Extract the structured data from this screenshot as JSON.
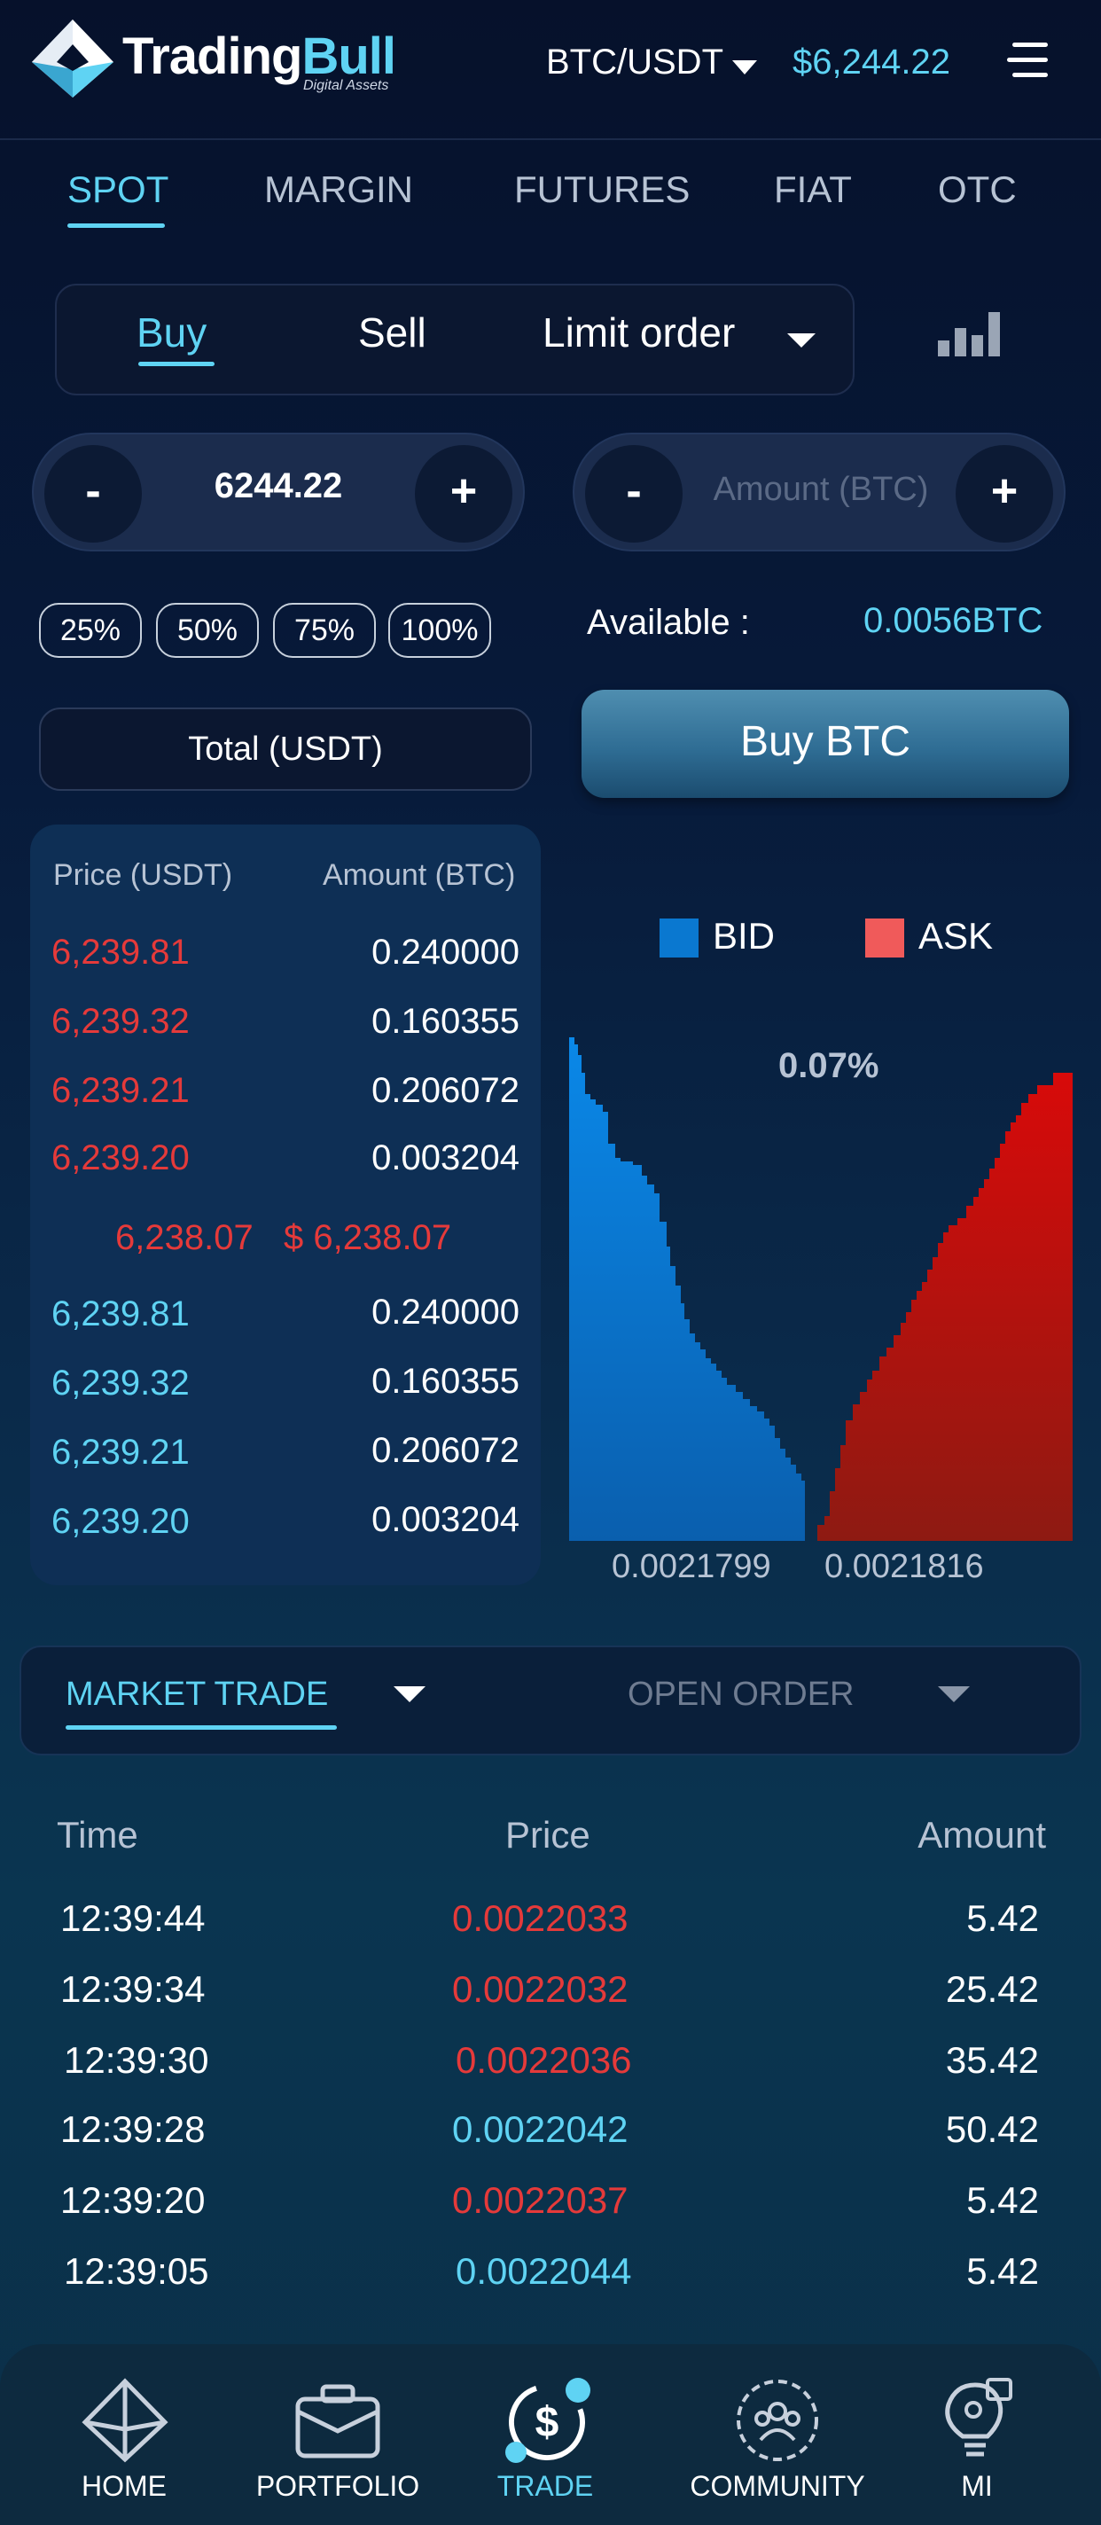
{
  "header": {
    "brand_part1": "Trading",
    "brand_part2": "Bull",
    "brand_sub": "Digital Assets",
    "pair": "BTC/USDT",
    "price": "$6,244.22"
  },
  "market_tabs": [
    "SPOT",
    "MARGIN",
    "FUTURES",
    "FIAT",
    "OTC"
  ],
  "order_types": {
    "buy": "Buy",
    "sell": "Sell",
    "limit": "Limit order"
  },
  "price_stepper": {
    "minus": "-",
    "value": "6244.22",
    "plus": "+"
  },
  "amount_stepper": {
    "minus": "-",
    "placeholder": "Amount (BTC)",
    "plus": "+"
  },
  "percent_chips": [
    "25%",
    "50%",
    "75%",
    "100%"
  ],
  "available": {
    "label": "Available  :",
    "value": "0.0056BTC"
  },
  "total_label": "Total (USDT)",
  "buy_button": "Buy BTC",
  "order_book": {
    "price_header": "Price (USDT)",
    "amount_header": "Amount (BTC)",
    "asks": [
      {
        "price": "6,239.81",
        "amount": "0.240000"
      },
      {
        "price": "6,239.32",
        "amount": "0.160355"
      },
      {
        "price": "6,239.21",
        "amount": "0.206072"
      },
      {
        "price": "6,239.20",
        "amount": "0.003204"
      }
    ],
    "mid_price": "6,238.07",
    "mid_usd": "$ 6,238.07",
    "bids": [
      {
        "price": "6,239.81",
        "amount": "0.240000"
      },
      {
        "price": "6,239.32",
        "amount": "0.160355"
      },
      {
        "price": "6,239.21",
        "amount": "0.206072"
      },
      {
        "price": "6,239.20",
        "amount": "0.003204"
      }
    ]
  },
  "depth_chart": {
    "bid_label": "BID",
    "ask_label": "ASK",
    "bid_color": "#0a78d0",
    "ask_color": "#f05a5a",
    "spread": "0.07%",
    "bid_price_label": "0.0021799",
    "ask_price_label": "0.0021816"
  },
  "trade_tabs": {
    "market": "MARKET TRADE",
    "open": "OPEN ORDER"
  },
  "trades": {
    "headers": {
      "time": "Time",
      "price": "Price",
      "amount": "Amount"
    },
    "rows": [
      {
        "time": "12:39:44",
        "price": "0.0022033",
        "amount": "5.42",
        "side": "sell"
      },
      {
        "time": "12:39:34",
        "price": "0.0022032",
        "amount": "25.42",
        "side": "sell"
      },
      {
        "time": "12:39:30",
        "price": "0.0022036",
        "amount": "35.42",
        "side": "sell"
      },
      {
        "time": "12:39:28",
        "price": "0.0022042",
        "amount": "50.42",
        "side": "buy"
      },
      {
        "time": "12:39:20",
        "price": "0.0022037",
        "amount": "5.42",
        "side": "sell"
      },
      {
        "time": "12:39:05",
        "price": "0.0022044",
        "amount": "5.42",
        "side": "buy"
      }
    ]
  },
  "bottom_nav": [
    {
      "label": "HOME",
      "icon": "home-icon"
    },
    {
      "label": "PORTFOLIO",
      "icon": "briefcase-icon"
    },
    {
      "label": "TRADE",
      "icon": "dollar-exchange-icon",
      "active": true
    },
    {
      "label": "COMMUNITY",
      "icon": "community-icon"
    },
    {
      "label": "MI",
      "icon": "lightbulb-gear-icon"
    }
  ],
  "colors": {
    "accent": "#5fd3f3",
    "sell_red": "#e53a3a",
    "background": "#071a3a"
  }
}
